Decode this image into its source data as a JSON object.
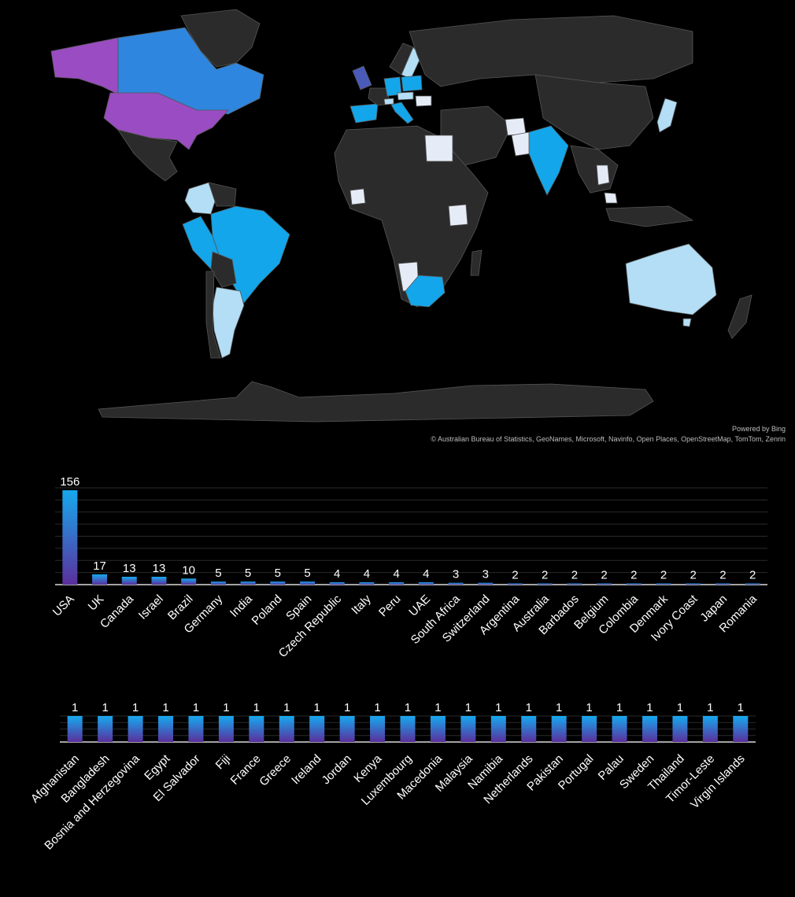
{
  "map": {
    "attribution_powered": "Powered by Bing",
    "attribution_copyright": "© Australian Bureau of Statistics, GeoNames, Microsoft, Navinfo, Open Places, OpenStreetMap, TomTom, Zenrin",
    "colors": {
      "ocean": "#000000",
      "land_no_data": "#2b2b2b",
      "border": "#555555",
      "purple": "#9a4cc2",
      "blue": "#2e86de",
      "indigo": "#4a5ab8",
      "cyan": "#13a6ea",
      "light_blue": "#b3def5",
      "pale": "#e6ecf7"
    },
    "country_colors": {
      "USA": "purple",
      "Alaska": "purple",
      "Canada": "blue",
      "UK": "indigo",
      "Germany": "cyan",
      "Poland": "cyan",
      "Spain": "cyan",
      "Italy": "cyan",
      "India": "cyan",
      "Brazil": "cyan",
      "Peru": "cyan",
      "South Africa": "cyan",
      "Australia": "light_blue",
      "Argentina": "light_blue",
      "Colombia": "light_blue",
      "Japan": "light_blue",
      "Czech Republic": "light_blue",
      "Switzerland": "light_blue",
      "Sweden": "light_blue",
      "Egypt": "pale",
      "Kenya": "pale",
      "Namibia": "pale",
      "Pakistan": "pale",
      "Thailand": "pale",
      "Malaysia": "pale",
      "Ivory Coast": "pale",
      "Afghanistan": "pale",
      "Romania": "pale"
    }
  },
  "chart_data": [
    {
      "type": "bar",
      "categories": [
        "USA",
        "UK",
        "Canada",
        "Israel",
        "Brazil",
        "Germany",
        "India",
        "Poland",
        "Spain",
        "Czech Republic",
        "Italy",
        "Peru",
        "UAE",
        "South Africa",
        "Switzerland",
        "Argentina",
        "Australia",
        "Barbados",
        "Belgium",
        "Colombia",
        "Denmark",
        "Ivory Coast",
        "Japan",
        "Romania"
      ],
      "values": [
        156,
        17,
        13,
        13,
        10,
        5,
        5,
        5,
        5,
        4,
        4,
        4,
        4,
        3,
        3,
        2,
        2,
        2,
        2,
        2,
        2,
        2,
        2,
        2
      ],
      "ylim": [
        0,
        160
      ],
      "grid": true,
      "bar_gradient": [
        "#17a9ef",
        "#5a2f9c"
      ]
    },
    {
      "type": "bar",
      "categories": [
        "Afghanistan",
        "Bangladesh",
        "Bosnia and Herzegovina",
        "Egypt",
        "El Salvador",
        "Fiji",
        "France",
        "Greece",
        "Ireland",
        "Jordan",
        "Kenya",
        "Luxembourg",
        "Macedonia",
        "Malaysia",
        "Namibia",
        "Netherlands",
        "Pakistan",
        "Portugal",
        "Palau",
        "Sweden",
        "Thailand",
        "Timor-Leste",
        "Virgin Islands"
      ],
      "values": [
        1,
        1,
        1,
        1,
        1,
        1,
        1,
        1,
        1,
        1,
        1,
        1,
        1,
        1,
        1,
        1,
        1,
        1,
        1,
        1,
        1,
        1,
        1
      ],
      "ylim": [
        0,
        1
      ],
      "grid": true,
      "bar_gradient": [
        "#17a9ef",
        "#5a2f9c"
      ]
    }
  ]
}
